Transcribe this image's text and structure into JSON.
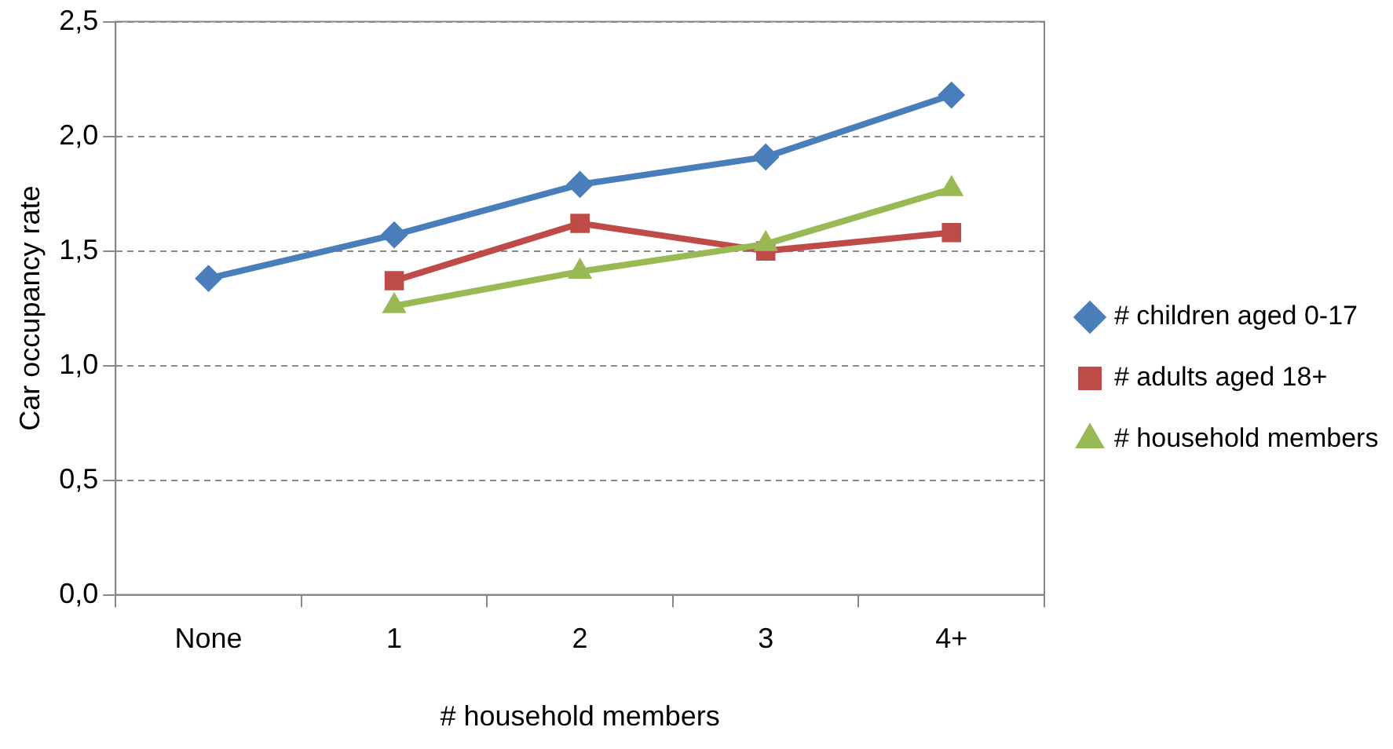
{
  "chart_data": {
    "type": "line",
    "xlabel": "# household members",
    "ylabel": "Car occupancy rate",
    "categories": [
      "None",
      "1",
      "2",
      "3",
      "4+"
    ],
    "series": [
      {
        "name": "# children aged 0-17",
        "color": "#4a7ebb",
        "marker": "diamond",
        "values": [
          1.38,
          1.57,
          1.79,
          1.91,
          2.18
        ]
      },
      {
        "name": "# adults aged 18+",
        "color": "#be4b48",
        "marker": "square",
        "values": [
          null,
          1.37,
          1.62,
          1.5,
          1.58
        ]
      },
      {
        "name": "# household members",
        "color": "#98b954",
        "marker": "triangle",
        "values": [
          null,
          1.26,
          1.41,
          1.53,
          1.77
        ]
      }
    ],
    "ylim": [
      0,
      2.5
    ],
    "yticks": [
      {
        "value": 0,
        "label": "0,0"
      },
      {
        "value": 0.5,
        "label": "0,5"
      },
      {
        "value": 1,
        "label": "1,0"
      },
      {
        "value": 1.5,
        "label": "1,5"
      },
      {
        "value": 2,
        "label": "2,0"
      },
      {
        "value": 2.5,
        "label": "2,5"
      }
    ],
    "grid": "y",
    "legend": "right"
  }
}
